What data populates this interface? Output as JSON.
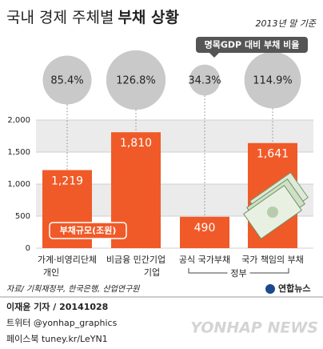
{
  "chart_data": {
    "type": "bar",
    "title": "국내 경제 주체별",
    "title_bold": "부채 상황",
    "subtitle": "2013년 말 기준",
    "ratio_label": "명목GDP 대비 부채 비율",
    "legend_label": "부채규모(조원)",
    "categories": [
      "가계·비영리단체",
      "비금융 민간기업",
      "공식 국가부채",
      "국가 책임의 부채"
    ],
    "group_labels": [
      "개인",
      "기업",
      "정부"
    ],
    "values": [
      1219,
      1810,
      490,
      1641
    ],
    "value_labels": [
      "1,219",
      "1,810",
      "490",
      "1,641"
    ],
    "color": "#f05a28",
    "ratios": [
      85.4,
      126.8,
      34.3,
      114.9
    ],
    "ratio_labels": [
      "85.4%",
      "126.8%",
      "34.3%",
      "114.9%"
    ],
    "ratio_color": "#c9c9c9",
    "ylim": [
      0,
      2000
    ],
    "yticks": [
      0,
      500,
      {
        "value": 1000,
        "label": "1,000"
      },
      {
        "value": 1500,
        "label": "1,500"
      },
      {
        "value": 2000,
        "label": "2,000"
      }
    ],
    "grid": true,
    "source": "자료/ 기획재정부, 한국은행, 산업연구원",
    "byline": "이재윤 기자 / 20141028",
    "twitter": "트위터 @yonhap_graphics",
    "facebook": "페이스북 tuney.kr/LeYN1",
    "logo": "연합뉴스",
    "watermark": "YONHAP NEWS"
  }
}
